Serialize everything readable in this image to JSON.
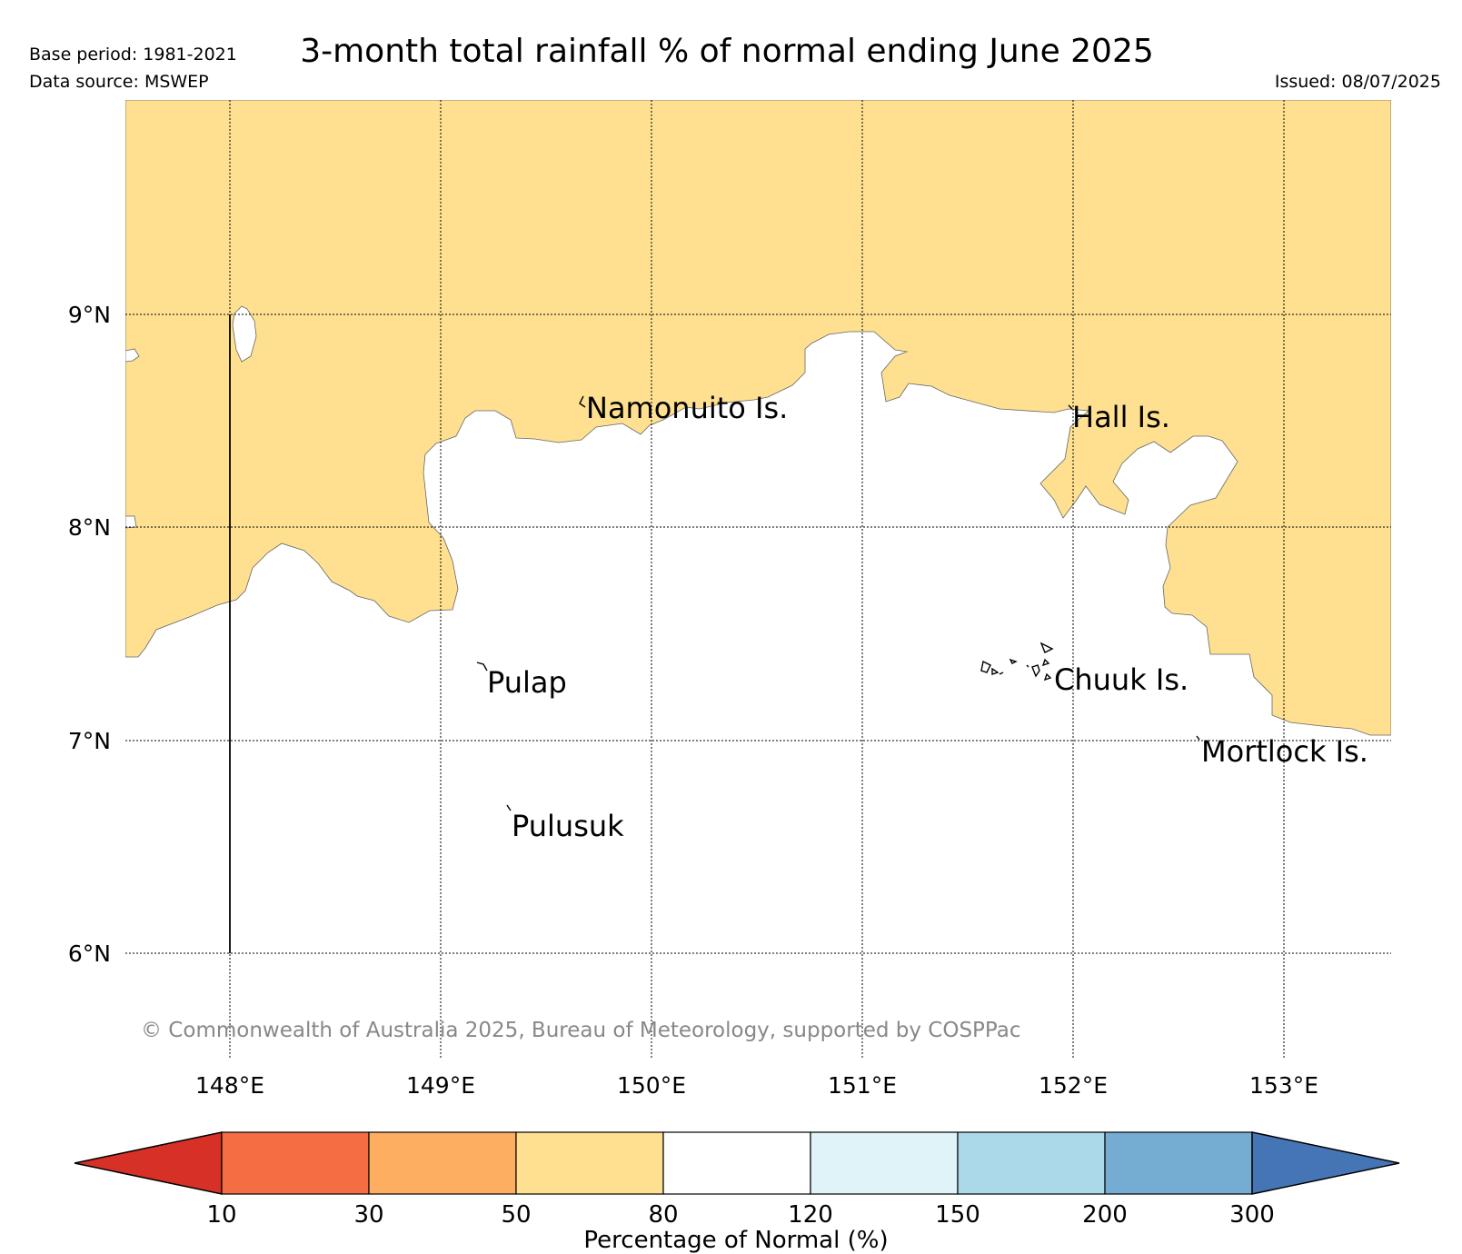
{
  "header": {
    "title": "3-month total rainfall % of normal ending June 2025",
    "base_period": "Base period: 1981-2021",
    "data_source": "Data source: MSWEP",
    "issued": "Issued: 08/07/2025"
  },
  "axes": {
    "lon_labels": [
      "148°E",
      "149°E",
      "150°E",
      "151°E",
      "152°E",
      "153°E"
    ],
    "lat_labels": [
      "9°N",
      "8°N",
      "7°N",
      "6°N"
    ]
  },
  "places": [
    {
      "name": "Namonuito Is."
    },
    {
      "name": "Hall Is."
    },
    {
      "name": "Pulap"
    },
    {
      "name": "Chuuk Is."
    },
    {
      "name": "Mortlock Is."
    },
    {
      "name": "Pulusuk"
    }
  ],
  "copyright": "© Commonwealth of Australia 2025, Bureau of Meteorology, supported by COSPPac",
  "colorbar": {
    "title": "Percentage of Normal (%)",
    "ticks": [
      "10",
      "30",
      "50",
      "80",
      "120",
      "150",
      "200",
      "300"
    ],
    "colors": {
      "under": "#d73027",
      "10-30": "#f46d43",
      "30-50": "#fdae61",
      "50-80": "#fee090",
      "80-120": "#ffffff",
      "120-150": "#e0f3f8",
      "150-200": "#abd9e9",
      "200-300": "#74add1",
      "over": "#4575b4"
    }
  },
  "region_colors": {
    "dry": "#fee090",
    "normal": "#ffffff"
  }
}
